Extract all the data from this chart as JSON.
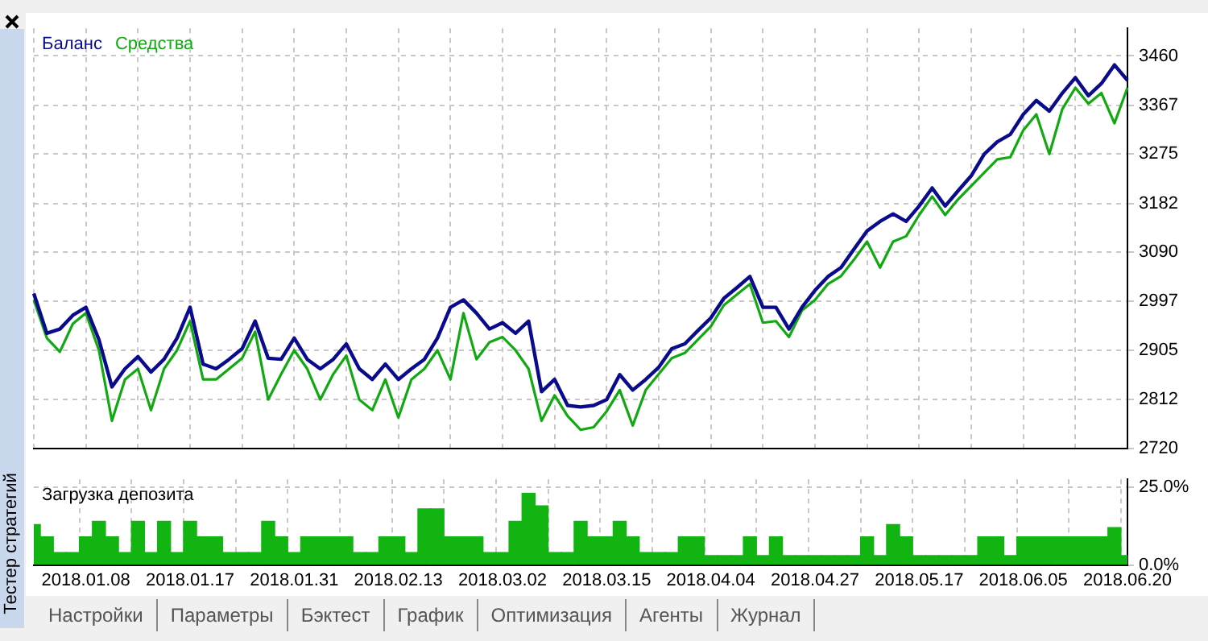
{
  "chart_data": [
    {
      "type": "line",
      "legend": "top left",
      "grid": true,
      "tick_labels": "y",
      "ylim": [
        2720,
        3512
      ],
      "yticks": [
        2720,
        2812,
        2905,
        2997,
        3090,
        3182,
        3275,
        3367,
        3460
      ],
      "categories": [
        null,
        null,
        null,
        null,
        null,
        null,
        null,
        null,
        null,
        null,
        null,
        null,
        null,
        null,
        null,
        null,
        null,
        null,
        null,
        null,
        null,
        null,
        null,
        null,
        null,
        null,
        null,
        null,
        null,
        null,
        null,
        null,
        null,
        null,
        null,
        null,
        null,
        null,
        null,
        null,
        null,
        null,
        null,
        null,
        null,
        null,
        null,
        null,
        null,
        null,
        null,
        null,
        null,
        null,
        null,
        null,
        null,
        null,
        null,
        null,
        null,
        null,
        null,
        null,
        null,
        null,
        null,
        null,
        null,
        null,
        null,
        null,
        null,
        null,
        null,
        null,
        null,
        null,
        null,
        null,
        null,
        null,
        null,
        null,
        null
      ],
      "series": [
        {
          "name": "Баланс",
          "color": "#0a0a8c",
          "values": [
            3012,
            2937,
            2945,
            2971,
            2986,
            2925,
            2836,
            2870,
            2893,
            2864,
            2888,
            2928,
            2986,
            2879,
            2870,
            2888,
            2908,
            2960,
            2890,
            2888,
            2928,
            2888,
            2870,
            2888,
            2917,
            2870,
            2850,
            2879,
            2850,
            2870,
            2888,
            2928,
            2986,
            3000,
            2975,
            2945,
            2957,
            2937,
            2960,
            2827,
            2850,
            2801,
            2798,
            2801,
            2812,
            2859,
            2830,
            2850,
            2873,
            2908,
            2917,
            2942,
            2966,
            3003,
            3023,
            3044,
            2986,
            2986,
            2945,
            2986,
            3018,
            3044,
            3061,
            3096,
            3130,
            3148,
            3162,
            3148,
            3177,
            3211,
            3177,
            3206,
            3234,
            3275,
            3298,
            3312,
            3350,
            3376,
            3356,
            3390,
            3419,
            3385,
            3408,
            3443,
            3414
          ]
        },
        {
          "name": "Средства",
          "color": "#12a812",
          "values": [
            3000,
            2928,
            2902,
            2955,
            2975,
            2905,
            2772,
            2850,
            2870,
            2792,
            2870,
            2905,
            2960,
            2850,
            2850,
            2870,
            2890,
            2940,
            2812,
            2860,
            2905,
            2870,
            2812,
            2860,
            2895,
            2812,
            2792,
            2850,
            2778,
            2850,
            2870,
            2905,
            2850,
            2975,
            2888,
            2920,
            2930,
            2905,
            2870,
            2772,
            2820,
            2781,
            2755,
            2760,
            2790,
            2830,
            2763,
            2830,
            2860,
            2890,
            2900,
            2925,
            2950,
            2990,
            3010,
            3030,
            2957,
            2960,
            2930,
            2980,
            3000,
            3030,
            3045,
            3076,
            3110,
            3061,
            3110,
            3120,
            3160,
            3195,
            3160,
            3190,
            3215,
            3240,
            3265,
            3269,
            3320,
            3350,
            3275,
            3360,
            3400,
            3370,
            3390,
            3333,
            3400
          ]
        }
      ]
    },
    {
      "type": "bar",
      "title": "Загрузка депозита",
      "grid": true,
      "ylim": [
        0,
        27.5
      ],
      "yticks": [
        {
          "value": 0,
          "label": "0.0%"
        },
        {
          "value": 25,
          "label": "25.0%"
        }
      ],
      "categories": [
        null,
        null,
        null,
        null,
        "2018.01.08",
        null,
        null,
        null,
        null,
        null,
        null,
        null,
        "2018.01.17",
        null,
        null,
        null,
        null,
        null,
        null,
        null,
        "2018.01.31",
        null,
        null,
        null,
        null,
        null,
        null,
        null,
        "2018.02.13",
        null,
        null,
        null,
        null,
        null,
        null,
        null,
        "2018.03.02",
        null,
        null,
        null,
        null,
        null,
        null,
        null,
        "2018.03.15",
        null,
        null,
        null,
        null,
        null,
        null,
        null,
        "2018.04.04",
        null,
        null,
        null,
        null,
        null,
        null,
        null,
        "2018.04.27",
        null,
        null,
        null,
        null,
        null,
        null,
        null,
        "2018.05.17",
        null,
        null,
        null,
        null,
        null,
        null,
        null,
        "2018.06.05",
        null,
        null,
        null,
        null,
        null,
        null,
        null,
        "2018.06.20"
      ],
      "color": "#12b412",
      "values": [
        13,
        9,
        4,
        4,
        9,
        14,
        9,
        4,
        14,
        4,
        14,
        4,
        14,
        9,
        9,
        4,
        4,
        4,
        14,
        9,
        4,
        9,
        9,
        9,
        9,
        4,
        4,
        9,
        9,
        4,
        18,
        18,
        9,
        9,
        9,
        4,
        4,
        14,
        23,
        19,
        4,
        4,
        14,
        9,
        9,
        14,
        9,
        4,
        4,
        4,
        9,
        9,
        3,
        3,
        3,
        9,
        3,
        9,
        3,
        3,
        3,
        3,
        3,
        3,
        9,
        3,
        13,
        9,
        3,
        3,
        3,
        3,
        3,
        9,
        9,
        3,
        9,
        9,
        9,
        9,
        9,
        9,
        9,
        12,
        3
      ],
      "annotations": [
        "Тестер стратегий",
        "Настройки",
        "Параметры",
        "Бэктест",
        "График",
        "Оптимизация",
        "Агенты",
        "Журнал"
      ]
    }
  ]
}
